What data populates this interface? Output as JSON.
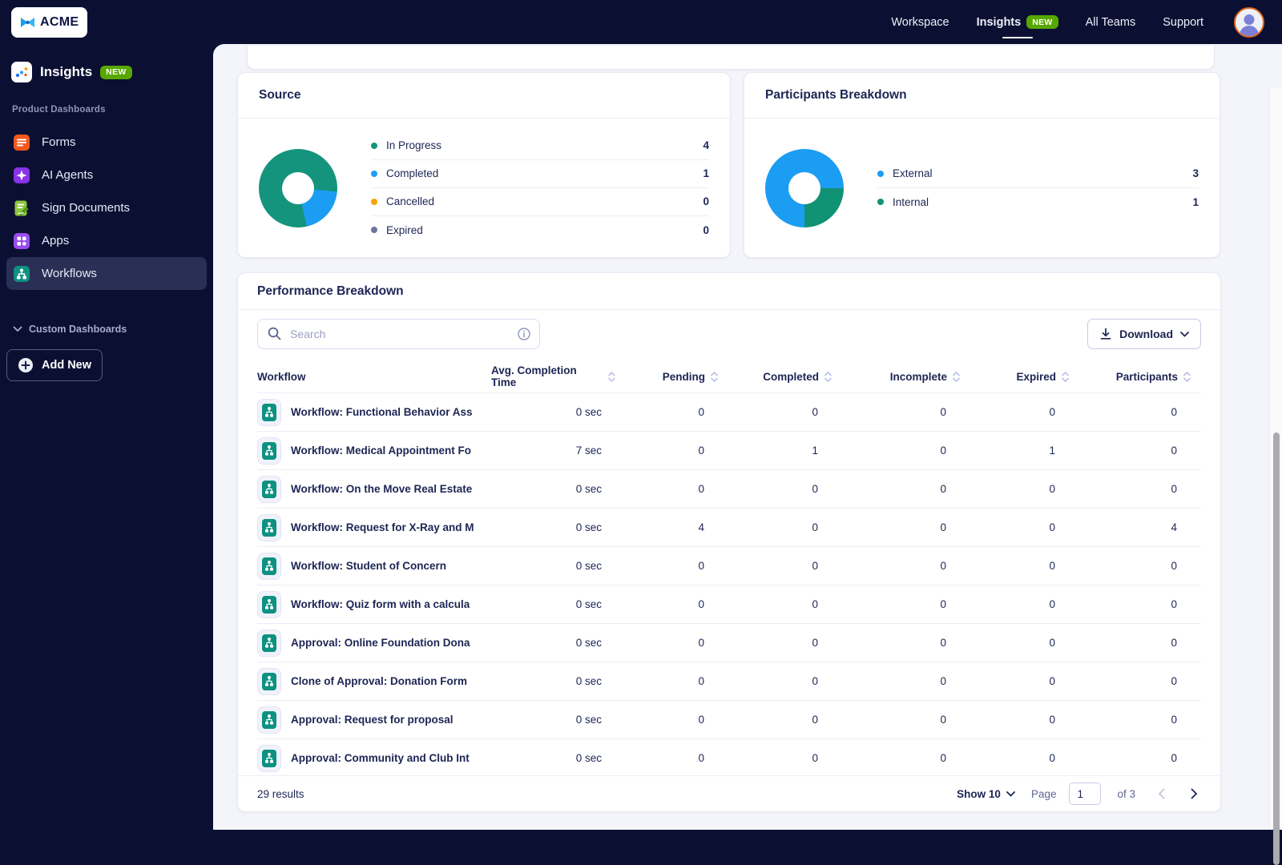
{
  "brand": {
    "name": "ACME"
  },
  "topnav": {
    "items": [
      {
        "label": "Workspace"
      },
      {
        "label": "Insights",
        "badge": "NEW"
      },
      {
        "label": "All Teams"
      },
      {
        "label": "Support"
      }
    ]
  },
  "sidebar": {
    "title": "Insights",
    "title_badge": "NEW",
    "section_label": "Product Dashboards",
    "items": [
      {
        "label": "Forms"
      },
      {
        "label": "AI Agents"
      },
      {
        "label": "Sign Documents"
      },
      {
        "label": "Apps"
      },
      {
        "label": "Workflows"
      }
    ],
    "custom_dashboards_label": "Custom Dashboards",
    "add_new_label": "Add New"
  },
  "colors": {
    "navy": "#0b1033",
    "accent_green": "#14947c",
    "accent_blue": "#1b9df3",
    "accent_orange": "#f7a400",
    "muted_purple": "#6e74a0",
    "internal_green": "#109274",
    "badge_green": "#58a700"
  },
  "source_card": {
    "title": "Source",
    "donut": {
      "from_deg": 167,
      "slices": [
        {
          "color": "#14947c",
          "value": 4
        },
        {
          "color": "#1b9df3",
          "value": 1
        }
      ]
    },
    "legend": [
      {
        "label": "In Progress",
        "value": 4,
        "color": "#14947c"
      },
      {
        "label": "Completed",
        "value": 1,
        "color": "#1b9df3"
      },
      {
        "label": "Cancelled",
        "value": 0,
        "color": "#f7a400"
      },
      {
        "label": "Expired",
        "value": 0,
        "color": "#6e74a0"
      }
    ]
  },
  "participants_card": {
    "title": "Participants Breakdown",
    "donut": {
      "from_deg": 180,
      "slices": [
        {
          "color": "#1b9df3",
          "value": 3
        },
        {
          "color": "#109274",
          "value": 1
        }
      ]
    },
    "legend": [
      {
        "label": "External",
        "value": 3,
        "color": "#1b9df3"
      },
      {
        "label": "Internal",
        "value": 1,
        "color": "#109274"
      }
    ]
  },
  "chart_data": [
    {
      "type": "pie",
      "title": "Source",
      "labels": [
        "In Progress",
        "Completed",
        "Cancelled",
        "Expired"
      ],
      "values": [
        4,
        1,
        0,
        0
      ],
      "colors": [
        "#14947c",
        "#1b9df3",
        "#f7a400",
        "#6e74a0"
      ],
      "legend_position": "right"
    },
    {
      "type": "pie",
      "title": "Participants Breakdown",
      "labels": [
        "External",
        "Internal"
      ],
      "values": [
        3,
        1
      ],
      "colors": [
        "#1b9df3",
        "#109274"
      ],
      "legend_position": "right"
    }
  ],
  "performance": {
    "title": "Performance Breakdown",
    "search_placeholder": "Search",
    "download_label": "Download",
    "columns": [
      {
        "label": "Workflow",
        "sortable": false
      },
      {
        "label": "Avg. Completion Time",
        "sortable": true
      },
      {
        "label": "Pending",
        "sortable": true
      },
      {
        "label": "Completed",
        "sortable": true
      },
      {
        "label": "Incomplete",
        "sortable": true
      },
      {
        "label": "Expired",
        "sortable": true
      },
      {
        "label": "Participants",
        "sortable": true
      }
    ],
    "rows": [
      {
        "name": "Workflow: Functional Behavior Ass",
        "avg": "0 sec",
        "pending": 0,
        "completed": 0,
        "incomplete": 0,
        "expired": 0,
        "participants": 0
      },
      {
        "name": "Workflow: Medical Appointment Fo",
        "avg": "7 sec",
        "pending": 0,
        "completed": 1,
        "incomplete": 0,
        "expired": 1,
        "participants": 0
      },
      {
        "name": "Workflow: On the Move Real Estate",
        "avg": "0 sec",
        "pending": 0,
        "completed": 0,
        "incomplete": 0,
        "expired": 0,
        "participants": 0
      },
      {
        "name": "Workflow: Request for X-Ray and M",
        "avg": "0 sec",
        "pending": 4,
        "completed": 0,
        "incomplete": 0,
        "expired": 0,
        "participants": 4
      },
      {
        "name": "Workflow: Student of Concern",
        "avg": "0 sec",
        "pending": 0,
        "completed": 0,
        "incomplete": 0,
        "expired": 0,
        "participants": 0
      },
      {
        "name": "Workflow: Quiz form with a calcula",
        "avg": "0 sec",
        "pending": 0,
        "completed": 0,
        "incomplete": 0,
        "expired": 0,
        "participants": 0
      },
      {
        "name": "Approval: Online Foundation Dona",
        "avg": "0 sec",
        "pending": 0,
        "completed": 0,
        "incomplete": 0,
        "expired": 0,
        "participants": 0
      },
      {
        "name": "Clone of Approval: Donation Form",
        "avg": "0 sec",
        "pending": 0,
        "completed": 0,
        "incomplete": 0,
        "expired": 0,
        "participants": 0
      },
      {
        "name": "Approval: Request for proposal",
        "avg": "0 sec",
        "pending": 0,
        "completed": 0,
        "incomplete": 0,
        "expired": 0,
        "participants": 0
      },
      {
        "name": "Approval: Community and Club Int",
        "avg": "0 sec",
        "pending": 0,
        "completed": 0,
        "incomplete": 0,
        "expired": 0,
        "participants": 0
      }
    ],
    "footer": {
      "results": "29 results",
      "show": "Show 10",
      "page_label": "Page",
      "page_value": "1",
      "of_label": "of 3"
    }
  }
}
